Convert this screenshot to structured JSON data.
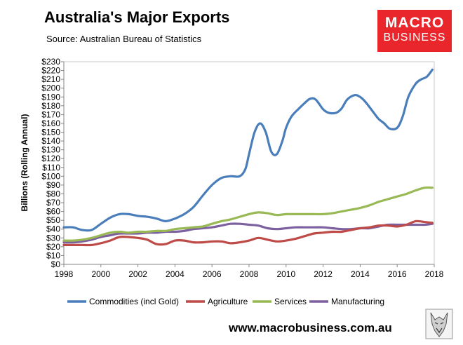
{
  "header": {
    "title": "Australia's Major Exports",
    "source": "Source: Australian Bureau of Statistics",
    "logo_line1": "MACRO",
    "logo_line2": "BUSINESS"
  },
  "footer": {
    "website": "www.macrobusiness.com.au"
  },
  "colors": {
    "commodities": "#4a7ebb",
    "agriculture": "#be4b48",
    "services": "#98b954",
    "manufacturing": "#7d60a0",
    "logo_bg": "#e8262b"
  },
  "chart_data": {
    "type": "line",
    "title": "Australia's Major Exports",
    "ylabel": "Billions (Rolling Annual)",
    "xlabel": "",
    "xlim": [
      1998,
      2018
    ],
    "ylim": [
      0,
      230
    ],
    "x_ticks": [
      1998,
      2000,
      2002,
      2004,
      2006,
      2008,
      2010,
      2012,
      2014,
      2016,
      2018
    ],
    "y_ticks": [
      0,
      10,
      20,
      30,
      40,
      50,
      60,
      70,
      80,
      90,
      100,
      110,
      120,
      130,
      140,
      150,
      160,
      170,
      180,
      190,
      200,
      210,
      220,
      230
    ],
    "y_tick_labels": [
      "$0",
      "$10",
      "$20",
      "$30",
      "$40",
      "$50",
      "$60",
      "$70",
      "$80",
      "$90",
      "$100",
      "$110",
      "$120",
      "$130",
      "$140",
      "$150",
      "$160",
      "$170",
      "$180",
      "$190",
      "$200",
      "$210",
      "$220",
      "$230"
    ],
    "legend_position": "bottom",
    "series": [
      {
        "name": "Commodities (incl Gold)",
        "key": "commodities",
        "x": [
          1998,
          1998.5,
          1999,
          1999.5,
          2000,
          2000.5,
          2001,
          2001.5,
          2002,
          2002.5,
          2003,
          2003.5,
          2004,
          2004.5,
          2005,
          2005.5,
          2006,
          2006.5,
          2007,
          2007.5,
          2007.8,
          2008,
          2008.3,
          2008.6,
          2008.9,
          2009.2,
          2009.5,
          2009.8,
          2010,
          2010.3,
          2010.7,
          2011,
          2011.3,
          2011.6,
          2012,
          2012.3,
          2012.7,
          2013,
          2013.3,
          2013.7,
          2014,
          2014.3,
          2014.7,
          2015,
          2015.3,
          2015.6,
          2016,
          2016.3,
          2016.6,
          2017,
          2017.3,
          2017.6,
          2017.9
        ],
        "y": [
          42,
          42,
          39,
          39,
          46,
          53,
          57,
          57,
          55,
          54,
          52,
          49,
          52,
          57,
          65,
          78,
          90,
          98,
          100,
          100,
          108,
          125,
          150,
          160,
          150,
          128,
          125,
          140,
          155,
          168,
          177,
          183,
          188,
          187,
          176,
          172,
          172,
          177,
          187,
          192,
          190,
          184,
          173,
          165,
          160,
          154,
          155,
          168,
          190,
          205,
          210,
          213,
          221
        ]
      },
      {
        "name": "Agriculture",
        "key": "agriculture",
        "x": [
          1998,
          1998.5,
          1999,
          1999.5,
          2000,
          2000.5,
          2001,
          2001.5,
          2002,
          2002.5,
          2003,
          2003.5,
          2004,
          2004.5,
          2005,
          2005.5,
          2006,
          2006.5,
          2007,
          2007.5,
          2008,
          2008.5,
          2009,
          2009.5,
          2010,
          2010.5,
          2011,
          2011.5,
          2012,
          2012.5,
          2013,
          2013.5,
          2014,
          2014.5,
          2015,
          2015.5,
          2016,
          2016.5,
          2017,
          2017.5,
          2017.9
        ],
        "y": [
          22,
          22,
          22,
          22,
          24,
          27,
          31,
          31,
          30,
          28,
          23,
          23,
          27,
          27,
          25,
          25,
          26,
          26,
          24,
          25,
          27,
          30,
          28,
          26,
          27,
          29,
          32,
          35,
          36,
          37,
          37,
          39,
          41,
          42,
          44,
          44,
          43,
          45,
          49,
          48,
          47
        ]
      },
      {
        "name": "Services",
        "key": "services",
        "x": [
          1998,
          1998.5,
          1999,
          1999.5,
          2000,
          2000.5,
          2001,
          2001.5,
          2002,
          2002.5,
          2003,
          2003.5,
          2004,
          2004.5,
          2005,
          2005.5,
          2006,
          2006.5,
          2007,
          2007.5,
          2008,
          2008.5,
          2009,
          2009.5,
          2010,
          2010.5,
          2011,
          2011.5,
          2012,
          2012.5,
          2013,
          2013.5,
          2014,
          2014.5,
          2015,
          2015.5,
          2016,
          2016.5,
          2017,
          2017.5,
          2017.9
        ],
        "y": [
          27,
          27,
          28,
          30,
          33,
          36,
          37,
          36,
          37,
          37,
          38,
          38,
          40,
          41,
          42,
          43,
          46,
          49,
          51,
          54,
          57,
          59,
          58,
          56,
          57,
          57,
          57,
          57,
          57,
          58,
          60,
          62,
          64,
          67,
          71,
          74,
          77,
          80,
          84,
          87,
          87
        ]
      },
      {
        "name": "Manufacturing",
        "key": "manufacturing",
        "x": [
          1998,
          1998.5,
          1999,
          1999.5,
          2000,
          2000.5,
          2001,
          2001.5,
          2002,
          2002.5,
          2003,
          2003.5,
          2004,
          2004.5,
          2005,
          2005.5,
          2006,
          2006.5,
          2007,
          2007.5,
          2008,
          2008.5,
          2009,
          2009.5,
          2010,
          2010.5,
          2011,
          2011.5,
          2012,
          2012.5,
          2013,
          2013.5,
          2014,
          2014.5,
          2015,
          2015.5,
          2016,
          2016.5,
          2017,
          2017.5,
          2017.9
        ],
        "y": [
          25,
          25,
          26,
          28,
          31,
          33,
          35,
          35,
          35,
          36,
          36,
          37,
          37,
          38,
          40,
          41,
          42,
          44,
          46,
          46,
          45,
          44,
          41,
          40,
          41,
          42,
          42,
          42,
          42,
          41,
          40,
          40,
          41,
          41,
          43,
          45,
          45,
          45,
          45,
          45,
          46
        ]
      }
    ]
  }
}
